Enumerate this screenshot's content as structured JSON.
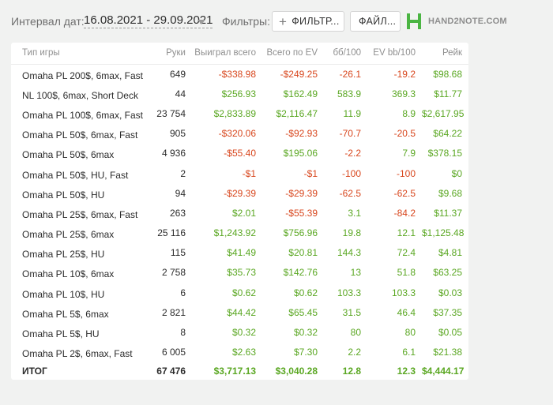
{
  "toolbar": {
    "date_label": "Интервал дат:",
    "date_range": "16.08.2021 - 29.09.2021",
    "filters_label": "Фильтры:",
    "filter_button": "ФИЛЬТР...",
    "file_button": "ФАЙЛ...",
    "logo_text": "HAND2NOTE.COM"
  },
  "colors": {
    "positive": "#5aa722",
    "negative": "#d8471e",
    "logo": "#4bb543"
  },
  "table": {
    "headers": [
      "Тип игры",
      "Руки",
      "Выиграл всего",
      "Всего по EV",
      "бб/100",
      "EV bb/100",
      "Рейк"
    ],
    "rows": [
      [
        "Omaha PL 200$, 6max, Fast",
        "649",
        "-$338.98",
        "-$249.25",
        "-26.1",
        "-19.2",
        "$98.68"
      ],
      [
        "NL 100$, 6max, Short Deck",
        "44",
        "$256.93",
        "$162.49",
        "583.9",
        "369.3",
        "$11.77"
      ],
      [
        "Omaha PL 100$, 6max, Fast",
        "23 754",
        "$2,833.89",
        "$2,116.47",
        "11.9",
        "8.9",
        "$2,617.95"
      ],
      [
        "Omaha PL 50$, 6max, Fast",
        "905",
        "-$320.06",
        "-$92.93",
        "-70.7",
        "-20.5",
        "$64.22"
      ],
      [
        "Omaha PL 50$, 6max",
        "4 936",
        "-$55.40",
        "$195.06",
        "-2.2",
        "7.9",
        "$378.15"
      ],
      [
        "Omaha PL 50$, HU, Fast",
        "2",
        "-$1",
        "-$1",
        "-100",
        "-100",
        "$0"
      ],
      [
        "Omaha PL 50$, HU",
        "94",
        "-$29.39",
        "-$29.39",
        "-62.5",
        "-62.5",
        "$9.68"
      ],
      [
        "Omaha PL 25$, 6max, Fast",
        "263",
        "$2.01",
        "-$55.39",
        "3.1",
        "-84.2",
        "$11.37"
      ],
      [
        "Omaha PL 25$, 6max",
        "25 116",
        "$1,243.92",
        "$756.96",
        "19.8",
        "12.1",
        "$1,125.48"
      ],
      [
        "Omaha PL 25$, HU",
        "115",
        "$41.49",
        "$20.81",
        "144.3",
        "72.4",
        "$4.81"
      ],
      [
        "Omaha PL 10$, 6max",
        "2 758",
        "$35.73",
        "$142.76",
        "13",
        "51.8",
        "$63.25"
      ],
      [
        "Omaha PL 10$, HU",
        "6",
        "$0.62",
        "$0.62",
        "103.3",
        "103.3",
        "$0.03"
      ],
      [
        "Omaha PL 5$, 6max",
        "2 821",
        "$44.42",
        "$65.45",
        "31.5",
        "46.4",
        "$37.35"
      ],
      [
        "Omaha PL 5$, HU",
        "8",
        "$0.32",
        "$0.32",
        "80",
        "80",
        "$0.05"
      ],
      [
        "Omaha PL 2$, 6max, Fast",
        "6 005",
        "$2.63",
        "$7.30",
        "2.2",
        "6.1",
        "$21.38"
      ]
    ],
    "total": [
      "ИТОГ",
      "67 476",
      "$3,717.13",
      "$3,040.28",
      "12.8",
      "12.3",
      "$4,444.17"
    ]
  }
}
